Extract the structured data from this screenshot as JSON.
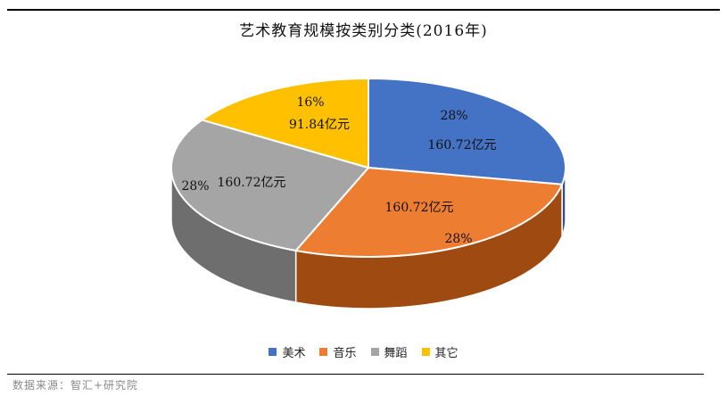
{
  "title": "艺术教育规模按类别分类(2016年)",
  "source": "数据来源：智汇+研究院",
  "chart_data": {
    "type": "pie",
    "title": "艺术教育规模按类别分类(2016年)",
    "unit": "亿元",
    "legend_position": "bottom",
    "slices": [
      {
        "name": "美术",
        "value": 160.72,
        "percent": "28%",
        "value_label": "160.72亿元",
        "color": "#4472C4",
        "side_color": "#2E4F8E"
      },
      {
        "name": "音乐",
        "value": 160.72,
        "percent": "28%",
        "value_label": "160.72亿元",
        "color": "#ED7D31",
        "side_color": "#9E4A10"
      },
      {
        "name": "舞蹈",
        "value": 160.72,
        "percent": "28%",
        "value_label": "160.72亿元",
        "color": "#A5A5A5",
        "side_color": "#6E6E6E"
      },
      {
        "name": "其它",
        "value": 91.84,
        "percent": "16%",
        "value_label": "91.84亿元",
        "color": "#FFC000",
        "side_color": "#B38600"
      }
    ]
  }
}
